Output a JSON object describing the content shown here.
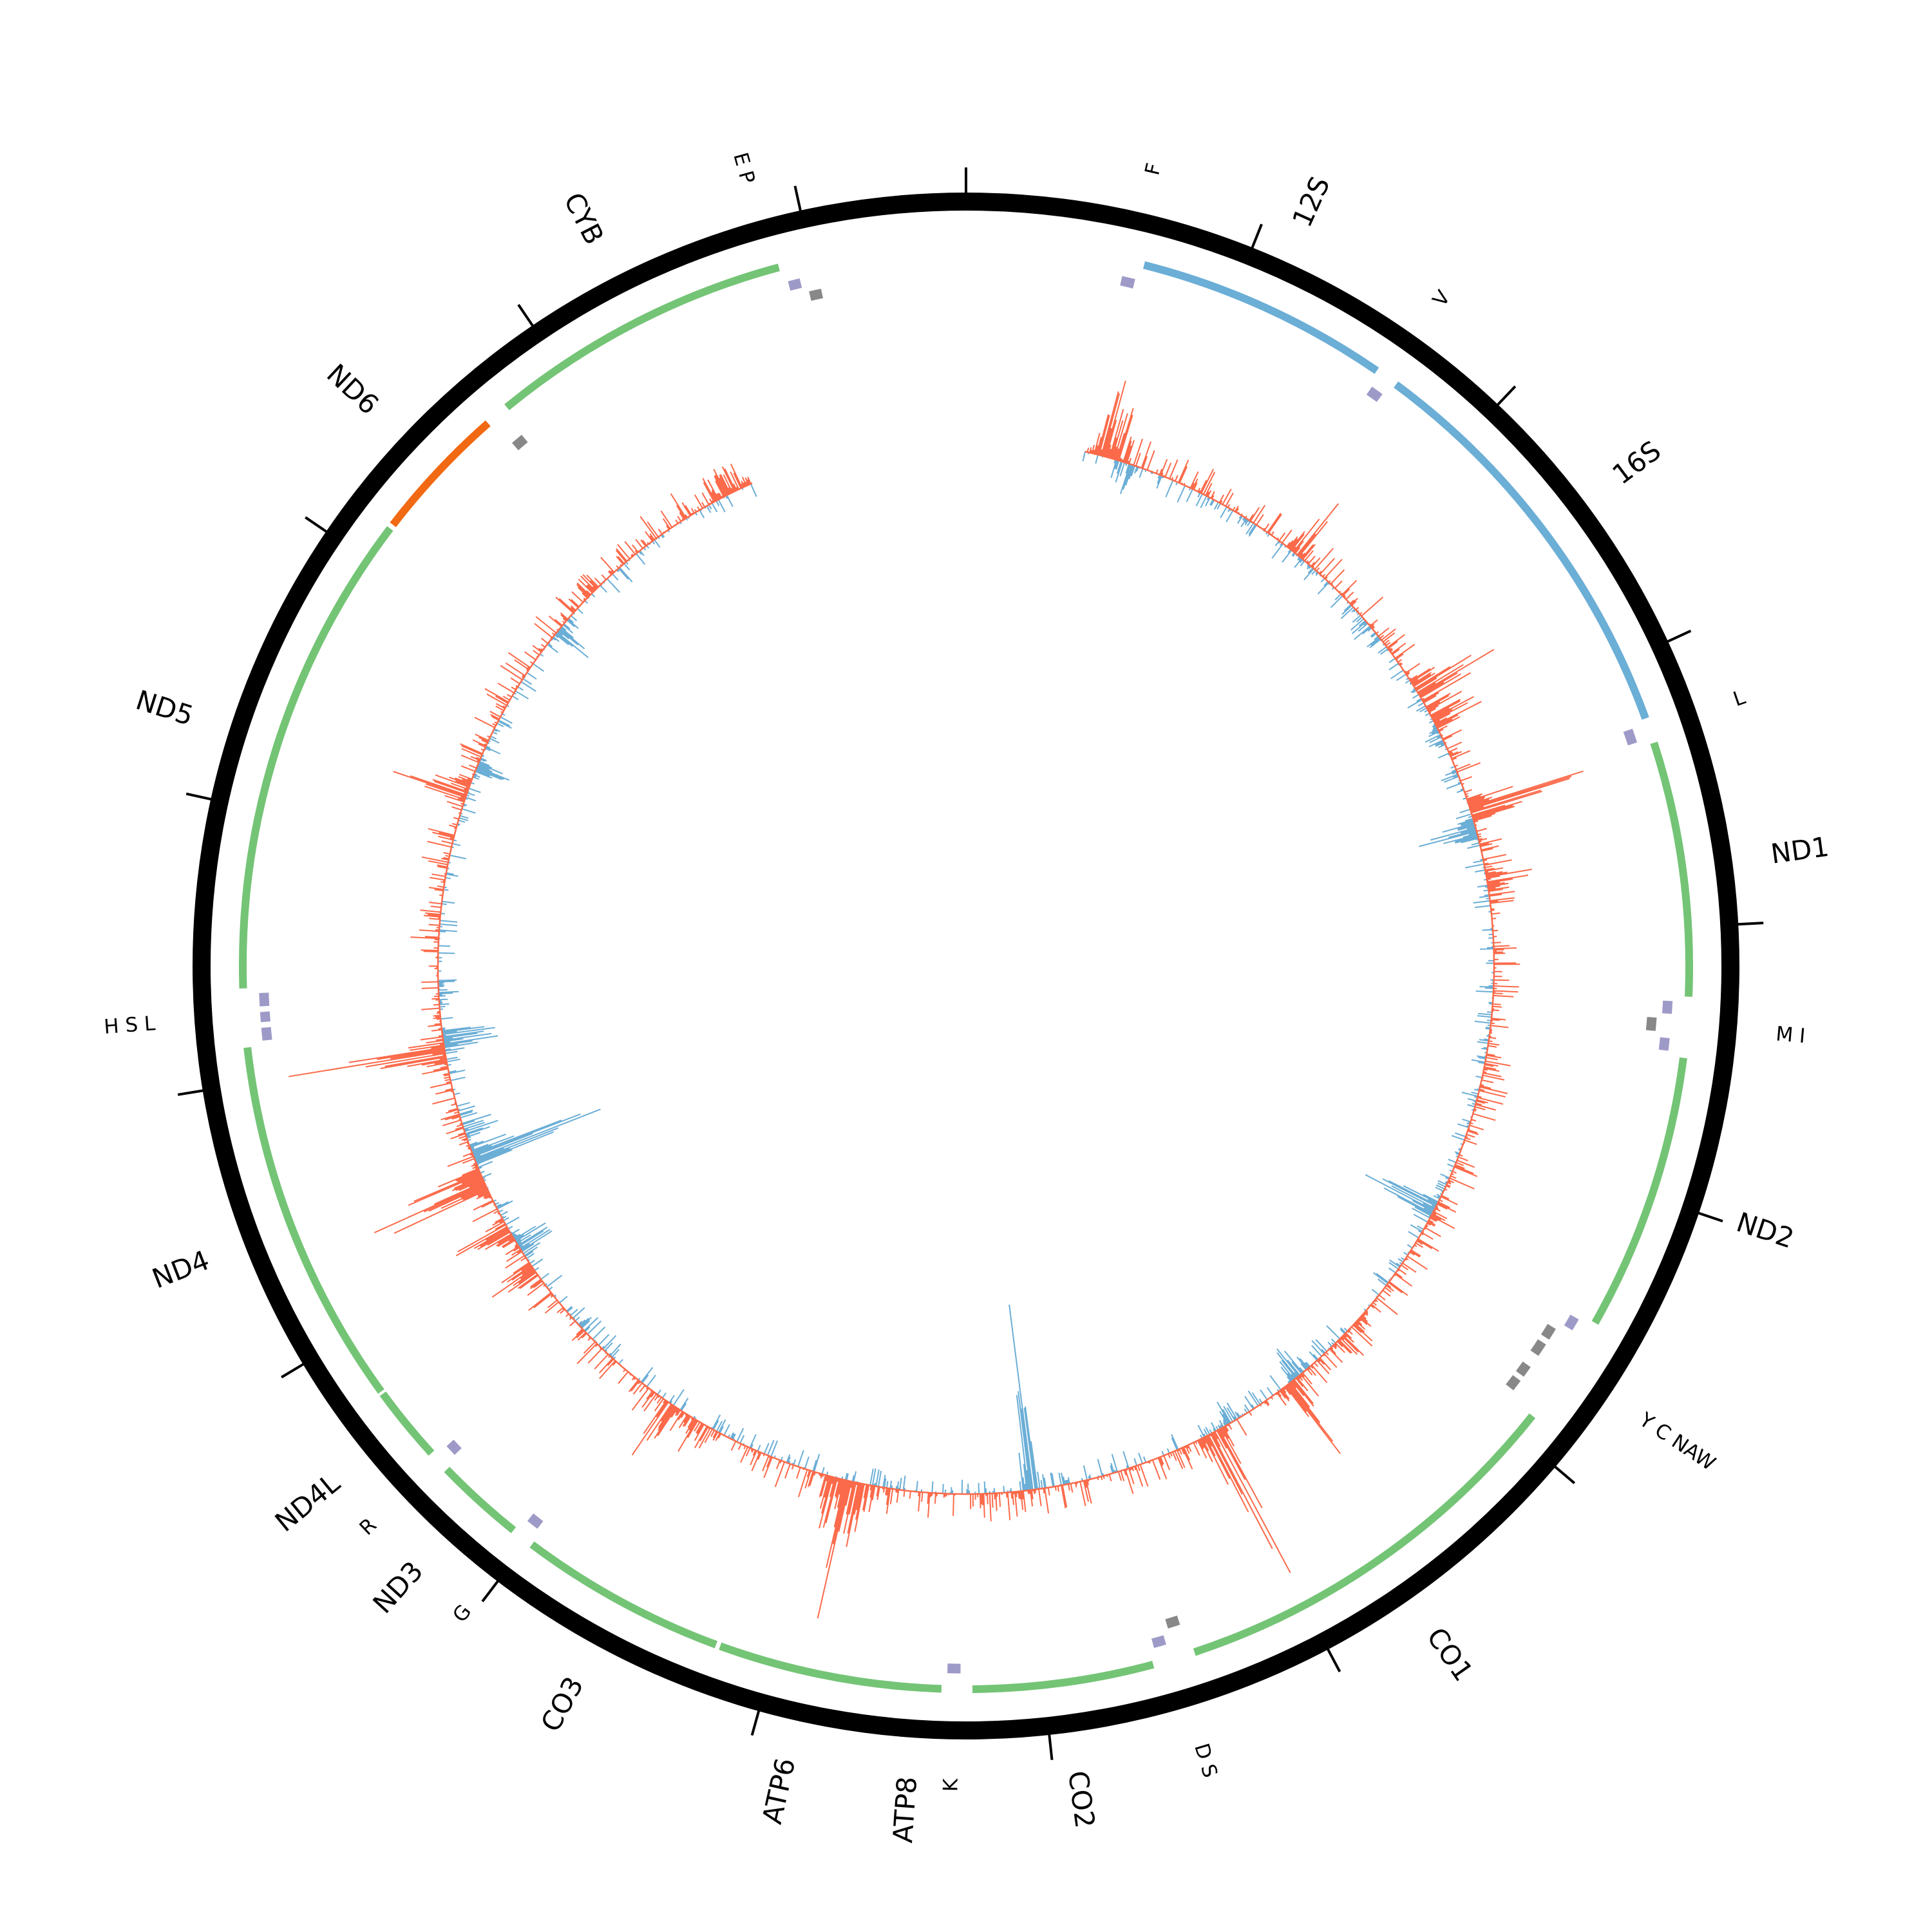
{
  "genome_length": 16569,
  "tick_interval": 1000,
  "colors": {
    "ring": "#000000",
    "protein": "#74c476",
    "protein_minus": "#f16913",
    "rrna": "#6baed6",
    "trna_plus": "#9e9ac8",
    "trna_minus": "#888888",
    "signal_pos": "#fb6a4a",
    "signal_neg": "#6baed6"
  },
  "genes": [
    {
      "name": "12S",
      "start": 648,
      "end": 1601,
      "type": "rrna"
    },
    {
      "name": "16S",
      "start": 1671,
      "end": 3229,
      "type": "rrna"
    },
    {
      "name": "ND1",
      "start": 3307,
      "end": 4262,
      "type": "protein"
    },
    {
      "name": "ND2",
      "start": 4470,
      "end": 5511,
      "type": "protein"
    },
    {
      "name": "CO1",
      "start": 5904,
      "end": 7445,
      "type": "protein"
    },
    {
      "name": "CO2",
      "start": 7586,
      "end": 8269,
      "type": "protein"
    },
    {
      "name": "ATP8",
      "start": 8366,
      "end": 8572,
      "type": "protein"
    },
    {
      "name": "ATP6",
      "start": 8527,
      "end": 9207,
      "type": "protein"
    },
    {
      "name": "CO3",
      "start": 9207,
      "end": 9990,
      "type": "protein"
    },
    {
      "name": "ND3",
      "start": 10059,
      "end": 10404,
      "type": "protein"
    },
    {
      "name": "ND4L",
      "start": 10470,
      "end": 10766,
      "type": "protein"
    },
    {
      "name": "ND4",
      "start": 10760,
      "end": 12137,
      "type": "protein"
    },
    {
      "name": "ND5",
      "start": 12337,
      "end": 14148,
      "type": "protein"
    },
    {
      "name": "ND6",
      "start": 14149,
      "end": 14673,
      "type": "protein_minus"
    },
    {
      "name": "CYB",
      "start": 14747,
      "end": 15887,
      "type": "protein"
    }
  ],
  "trnas": [
    {
      "name": "F",
      "start": 577,
      "end": 647,
      "strand": "+"
    },
    {
      "name": "V",
      "start": 1602,
      "end": 1670,
      "strand": "+"
    },
    {
      "name": "L",
      "start": 3230,
      "end": 3304,
      "strand": "+"
    },
    {
      "name": "I",
      "start": 4263,
      "end": 4331,
      "strand": "+"
    },
    {
      "name": "Q",
      "start": 4329,
      "end": 4400,
      "strand": "-"
    },
    {
      "name": "M",
      "start": 4402,
      "end": 4469,
      "strand": "+"
    },
    {
      "name": "W",
      "start": 5512,
      "end": 5579,
      "strand": "+"
    },
    {
      "name": "A",
      "start": 5587,
      "end": 5655,
      "strand": "-"
    },
    {
      "name": "N",
      "start": 5657,
      "end": 5729,
      "strand": "-"
    },
    {
      "name": "C",
      "start": 5761,
      "end": 5826,
      "strand": "-"
    },
    {
      "name": "Y",
      "start": 5826,
      "end": 5891,
      "strand": "-"
    },
    {
      "name": "S",
      "start": 7446,
      "end": 7514,
      "strand": "-"
    },
    {
      "name": "D",
      "start": 7518,
      "end": 7585,
      "strand": "+"
    },
    {
      "name": "K",
      "start": 8295,
      "end": 8364,
      "strand": "+"
    },
    {
      "name": "G",
      "start": 9991,
      "end": 10058,
      "strand": "+"
    },
    {
      "name": "R",
      "start": 10405,
      "end": 10469,
      "strand": "+"
    },
    {
      "name": "H",
      "start": 12138,
      "end": 12206,
      "strand": "+"
    },
    {
      "name": "S",
      "start": 12207,
      "end": 12265,
      "strand": "+"
    },
    {
      "name": "L",
      "start": 12266,
      "end": 12336,
      "strand": "+"
    },
    {
      "name": "E",
      "start": 14674,
      "end": 14742,
      "strand": "-"
    },
    {
      "name": "T",
      "start": 15888,
      "end": 15953,
      "strand": "+"
    },
    {
      "name": "P",
      "start": 15956,
      "end": 16023,
      "strand": "-"
    }
  ],
  "trna_labels": [
    {
      "text": "F",
      "pos": 612
    },
    {
      "text": "V",
      "pos": 1636
    },
    {
      "text": "L",
      "pos": 3267
    },
    {
      "text": "M  I",
      "pos": 4366
    },
    {
      "text": "Y C NAW",
      "pos": 5700
    },
    {
      "text": "D S",
      "pos": 7515
    },
    {
      "text": "K",
      "pos": 8330
    },
    {
      "text": "G",
      "pos": 10025
    },
    {
      "text": "R",
      "pos": 10437
    },
    {
      "text": "H S L",
      "pos": 12237
    },
    {
      "text": "E P",
      "pos": 15850
    }
  ],
  "signal": {
    "range": [
      600,
      15470
    ],
    "peaks": [
      {
        "pos": 700,
        "value": 95
      },
      {
        "pos": 760,
        "value": 70
      },
      {
        "pos": 820,
        "value": -45
      },
      {
        "pos": 1790,
        "value": 90
      },
      {
        "pos": 1850,
        "value": -20
      },
      {
        "pos": 2300,
        "value": -25
      },
      {
        "pos": 2480,
        "value": 30
      },
      {
        "pos": 2700,
        "value": 170
      },
      {
        "pos": 2760,
        "value": 130
      },
      {
        "pos": 2860,
        "value": 110
      },
      {
        "pos": 2950,
        "value": -25
      },
      {
        "pos": 3350,
        "value": 150
      },
      {
        "pos": 3450,
        "value": -75
      },
      {
        "pos": 3700,
        "value": 60
      },
      {
        "pos": 5400,
        "value": -120
      },
      {
        "pos": 5450,
        "value": 30
      },
      {
        "pos": 6080,
        "value": 20
      },
      {
        "pos": 6200,
        "value": 40
      },
      {
        "pos": 6480,
        "value": -50
      },
      {
        "pos": 6560,
        "value": 100
      },
      {
        "pos": 6900,
        "value": -40
      },
      {
        "pos": 7000,
        "value": 190
      },
      {
        "pos": 7950,
        "value": -200
      },
      {
        "pos": 8000,
        "value": 30
      },
      {
        "pos": 8160,
        "value": 35
      },
      {
        "pos": 8800,
        "value": 100
      },
      {
        "pos": 8870,
        "value": 160
      },
      {
        "pos": 8950,
        "value": 60
      },
      {
        "pos": 9700,
        "value": 60
      },
      {
        "pos": 9850,
        "value": 80
      },
      {
        "pos": 10800,
        "value": 110
      },
      {
        "pos": 10950,
        "value": -80
      },
      {
        "pos": 11050,
        "value": 90
      },
      {
        "pos": 11300,
        "value": 170
      },
      {
        "pos": 11350,
        "value": 120
      },
      {
        "pos": 11450,
        "value": -150
      },
      {
        "pos": 11600,
        "value": -50
      },
      {
        "pos": 12000,
        "value": 160
      },
      {
        "pos": 12050,
        "value": -170
      },
      {
        "pos": 12300,
        "value": -30
      },
      {
        "pos": 13300,
        "value": 90
      },
      {
        "pos": 13450,
        "value": -40
      },
      {
        "pos": 14250,
        "value": -60
      },
      {
        "pos": 14500,
        "value": 30
      },
      {
        "pos": 15300,
        "value": 60
      },
      {
        "pos": 15400,
        "value": 40
      }
    ]
  }
}
